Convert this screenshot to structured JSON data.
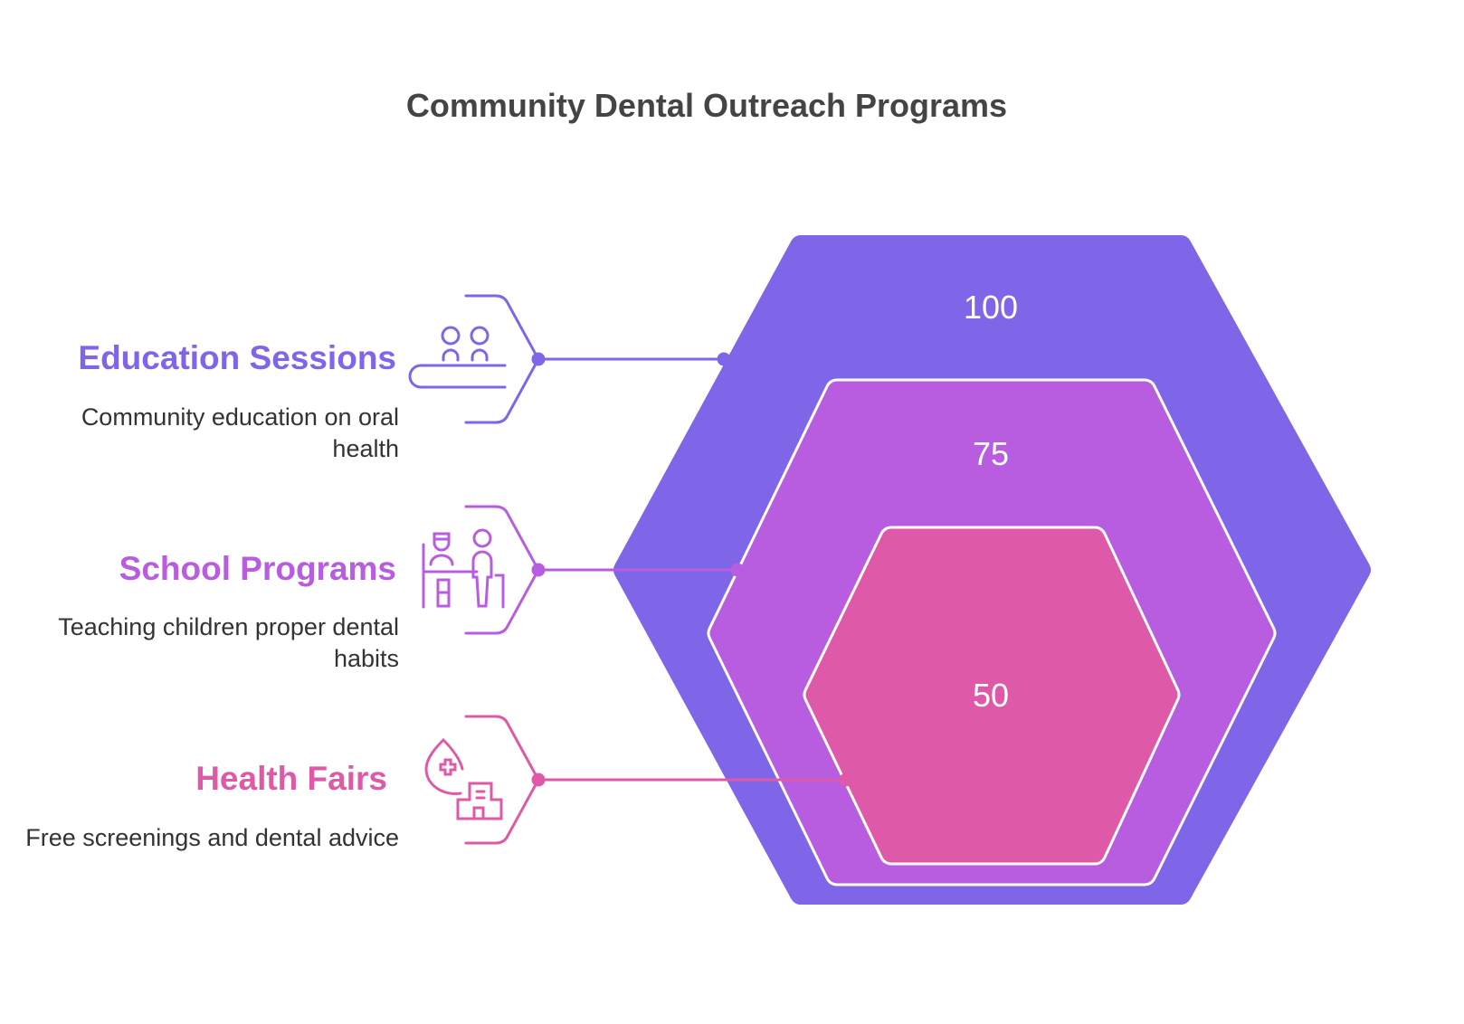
{
  "title": "Community Dental Outreach Programs",
  "colors": {
    "education": "#7F66E8",
    "school": "#B85DE0",
    "health": "#DE59A8"
  },
  "items": [
    {
      "label": "Education Sessions",
      "description": "Community education on oral health",
      "value": "100",
      "icon": "audience-presentation-icon"
    },
    {
      "label": "School Programs",
      "description": "Teaching children proper dental habits",
      "value": "75",
      "icon": "dentist-child-icon"
    },
    {
      "label": "Health Fairs",
      "description": "Free screenings and dental advice",
      "value": "50",
      "icon": "health-clinic-icon"
    }
  ]
}
